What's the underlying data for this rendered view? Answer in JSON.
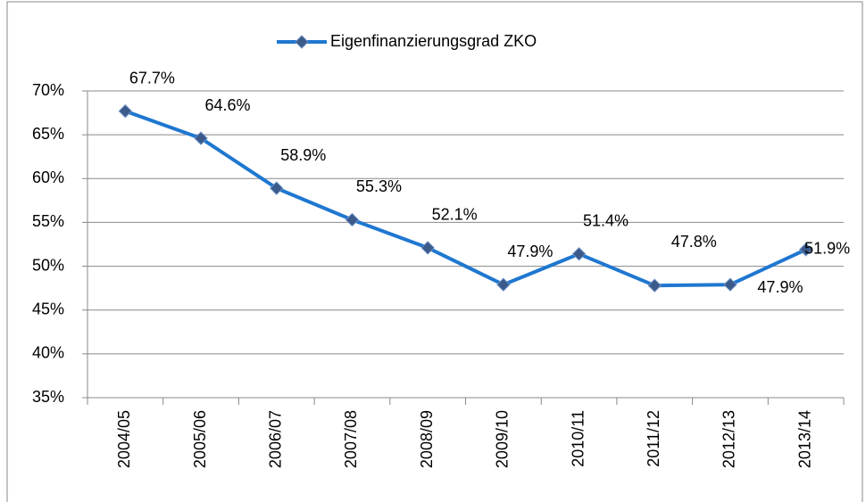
{
  "chart_data": {
    "type": "line",
    "categories": [
      "2004/05",
      "2005/06",
      "2006/07",
      "2007/08",
      "2008/09",
      "2009/10",
      "2010/11",
      "2011/12",
      "2012/13",
      "2013/14"
    ],
    "series": [
      {
        "name": "Eigenfinanzierungsgrad ZKO",
        "color": "#1f77d0",
        "values": [
          67.7,
          64.6,
          58.9,
          55.3,
          52.1,
          47.9,
          51.4,
          47.8,
          47.9,
          51.9
        ],
        "value_labels": [
          "67.7%",
          "64.6%",
          "58.9%",
          "55.3%",
          "52.1%",
          "47.9%",
          "51.4%",
          "47.8%",
          "47.9%",
          "51.9%"
        ]
      }
    ],
    "ylim": [
      35,
      70
    ],
    "yticks": [
      {
        "value": 35,
        "label": "35%"
      },
      {
        "value": 40,
        "label": "40%"
      },
      {
        "value": 45,
        "label": "45%"
      },
      {
        "value": 50,
        "label": "50%"
      },
      {
        "value": 55,
        "label": "55%"
      },
      {
        "value": 60,
        "label": "60%"
      },
      {
        "value": 65,
        "label": "65%"
      },
      {
        "value": 70,
        "label": "70%"
      }
    ],
    "grid": true,
    "legend": "top"
  }
}
